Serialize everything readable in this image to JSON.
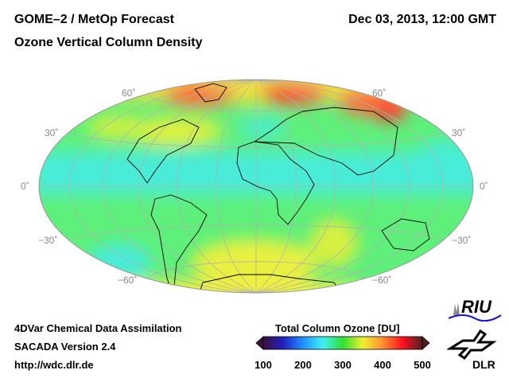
{
  "header": {
    "title": "GOME–2 / MetOp Forecast",
    "subtitle": "Ozone Vertical Column Density",
    "datetime": "Dec 03, 2013, 12:00 GMT"
  },
  "map": {
    "projection": "Hammer-Aitoff",
    "lat_labels_left": [
      "60˚",
      "30˚",
      "0˚",
      "−30˚",
      "−60˚"
    ],
    "lat_labels_right": [
      "60˚",
      "30˚",
      "0˚",
      "−30˚",
      "−60˚"
    ]
  },
  "footer": {
    "line1": "4DVar Chemical Data Assimilation",
    "line2": "SACADA Version 2.4",
    "link": "http://wdc.dlr.de"
  },
  "colorbar": {
    "title": "Total Column Ozone [DU]",
    "ticks": [
      "100",
      "200",
      "300",
      "400",
      "500"
    ],
    "range": [
      100,
      500
    ],
    "colors": [
      "#3a1040",
      "#2020c0",
      "#2090ff",
      "#40f0f0",
      "#30e030",
      "#f0f030",
      "#ff9030",
      "#ff1020",
      "#502020"
    ]
  },
  "logos": {
    "riu": "RIU",
    "dlr": "DLR"
  }
}
